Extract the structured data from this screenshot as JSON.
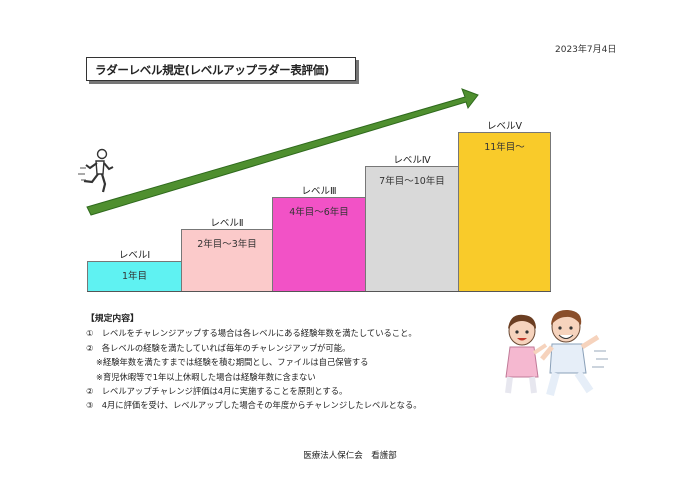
{
  "date": "2023年7月4日",
  "title": "ラダーレベル規定(レベルアップラダー表評価)",
  "levels": [
    {
      "label": "レベルⅠ",
      "years": "1年目",
      "color": "#5ff2f2"
    },
    {
      "label": "レベルⅡ",
      "years": "2年目～3年目",
      "color": "#fbcaca"
    },
    {
      "label": "レベルⅢ",
      "years": "4年目～6年目",
      "color": "#f252c6"
    },
    {
      "label": "レベルⅣ",
      "years": "7年目～10年目",
      "color": "#d9d9d9"
    },
    {
      "label": "レベルⅤ",
      "years": "11年目～",
      "color": "#f9cb2a"
    }
  ],
  "arrow_color": "#4f8f2f",
  "rules": {
    "heading": "【規定内容】",
    "lines": [
      "①　レベルをチャレンジアップする場合は各レベルにある経験年数を満たしていること。",
      "②　各レベルの経験を満たしていれば毎年のチャレンジアップが可能。",
      "※経験年数を満たすまでは経験を積む期間とし、ファイルは自己保管する",
      "※育児休暇等で1年以上休暇した場合は経験年数に含まない",
      "②　レベルアップチャレンジ評価は4月に実施することを原則とする。",
      "③　4月に評価を受け、レベルアップした場合その年度からチャレンジしたレベルとなる。"
    ]
  },
  "footer": "医療法人保仁会　看護部",
  "icons": {
    "runner": "running-person-icon",
    "nurses": "running-nurses-illustration"
  }
}
